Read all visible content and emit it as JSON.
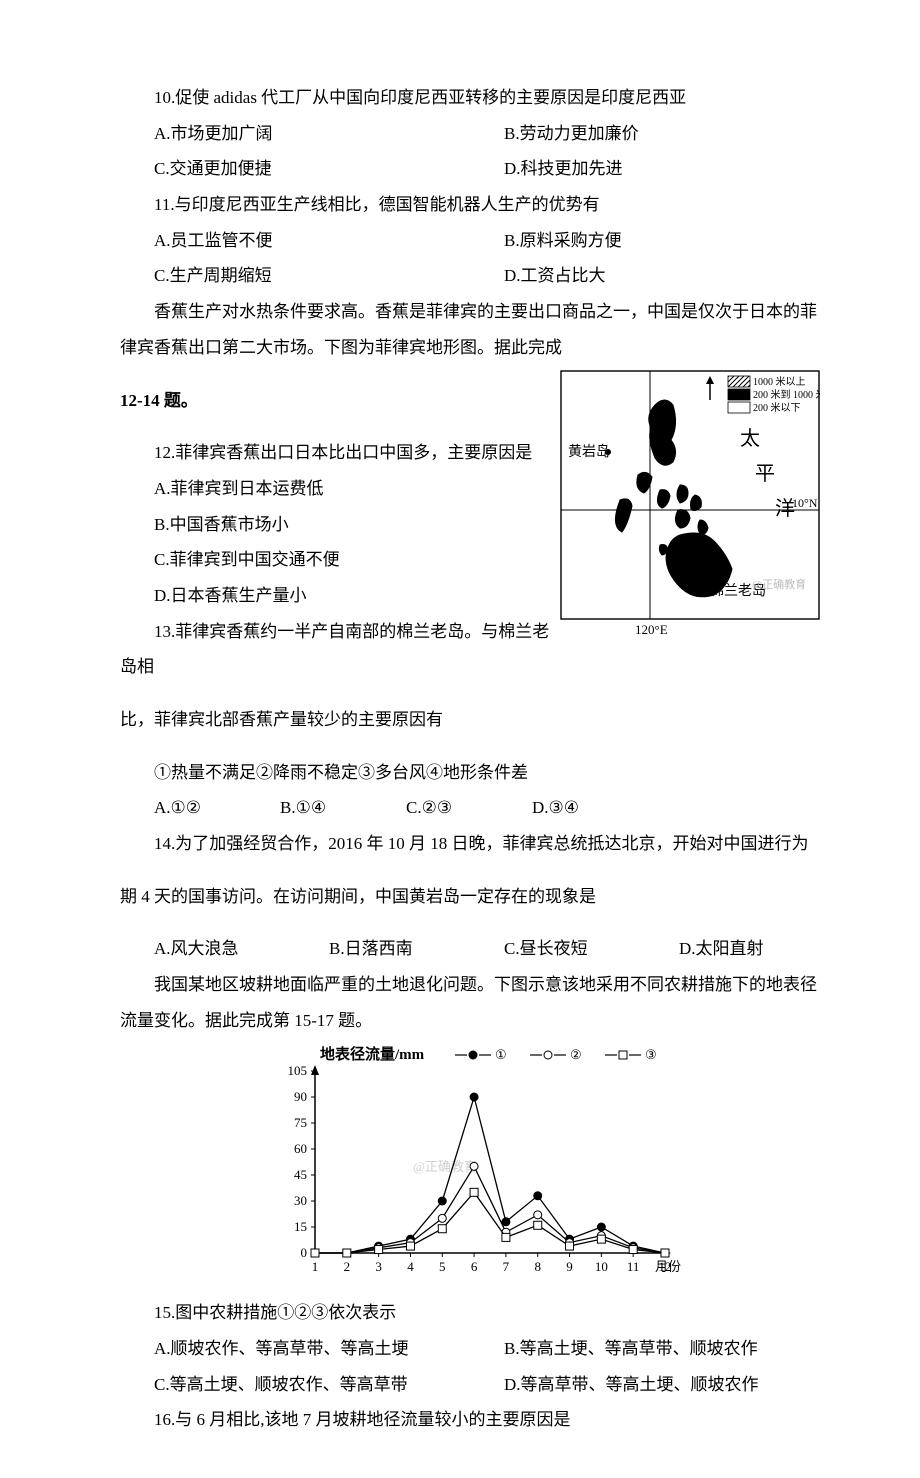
{
  "q10": {
    "stem": "10.促使 adidas 代工厂从中国向印度尼西亚转移的主要原因是印度尼西亚",
    "A": "A.市场更加广阔",
    "B": "B.劳动力更加廉价",
    "C": "C.交通更加便捷",
    "D": "D.科技更加先进"
  },
  "q11": {
    "stem": "11.与印度尼西亚生产线相比，德国智能机器人生产的优势有",
    "A": "A.员工监管不便",
    "B": "B.原料采购方便",
    "C": "C.生产周期缩短",
    "D": "D.工资占比大"
  },
  "ctx12_14": {
    "p1": "香蕉生产对水热条件要求高。香蕉是菲律宾的主要出口商品之一，中国是仅次于日本的菲律宾香蕉出口第二大市场。下图为菲律宾地形图。据此完成",
    "p2": "12-14 题。"
  },
  "map": {
    "legend": {
      "l1": "1000 米以上",
      "l2": "200 米到 1000 米",
      "l3": "200 米以下"
    },
    "labels": {
      "huangyan": "黄岩岛",
      "tai": "太",
      "ping": "平",
      "yang": "洋",
      "minlan": "棉兰老岛",
      "lat": "10°N",
      "lon": "120°E",
      "watermark": "@正确教育"
    },
    "colors": {
      "border": "#000000",
      "land_high": "#333333",
      "land_mid": "#000000",
      "land_low": "#ffffff",
      "hatch": "#000000",
      "text": "#000000",
      "wm": "#bdbdbd"
    }
  },
  "q12": {
    "stem": "12.菲律宾香蕉出口日本比出口中国多，主要原因是",
    "A": "A.菲律宾到日本运费低",
    "B": "B.中国香蕉市场小",
    "C": "C.菲律宾到中国交通不便",
    "D": "D.日本香蕉生产量小"
  },
  "q13": {
    "stem": "13.菲律宾香蕉约一半产自南部的棉兰老岛。与棉兰老岛相",
    "stem2": "比，菲律宾北部香蕉产量较少的主要原因有",
    "choices_line": "①热量不满足②降雨不稳定③多台风④地形条件差",
    "A": "A.①②",
    "B": "B.①④",
    "C": "C.②③",
    "D": "D.③④"
  },
  "q14": {
    "stem": "14.为了加强经贸合作，2016 年 10 月 18 日晚，菲律宾总统抵达北京，开始对中国进行为",
    "stem2": "期 4 天的国事访问。在访问期间，中国黄岩岛一定存在的现象是",
    "A": "A.风大浪急",
    "B": "B.日落西南",
    "C": "C.昼长夜短",
    "D": "D.太阳直射"
  },
  "ctx15_17": {
    "p1": "我国某地区坡耕地面临严重的土地退化问题。下图示意该地采用不同农耕措施下的地表径流量变化。据此完成第 15-17 题。"
  },
  "chart": {
    "title_y": "地表径流量/mm",
    "x_label": "月份",
    "legend": {
      "s1": "①",
      "s2": "②",
      "s3": "③"
    },
    "legend_markers": {
      "s1": "●",
      "s2": "○",
      "s3": "□"
    },
    "x_categories": [
      1,
      2,
      3,
      4,
      5,
      6,
      7,
      8,
      9,
      10,
      11,
      12
    ],
    "y_ticks": [
      0,
      15,
      30,
      45,
      60,
      75,
      90,
      105
    ],
    "ylim": [
      0,
      105
    ],
    "series": {
      "s1": [
        0,
        0,
        4,
        8,
        30,
        90,
        18,
        33,
        8,
        15,
        4,
        0
      ],
      "s2": [
        0,
        0,
        3,
        6,
        20,
        50,
        12,
        22,
        6,
        10,
        3,
        0
      ],
      "s3": [
        0,
        0,
        2,
        4,
        14,
        35,
        9,
        16,
        4,
        8,
        2,
        0
      ]
    },
    "colors": {
      "axis": "#000000",
      "text": "#000000",
      "line": "#000000",
      "marker_fill_s1": "#000000",
      "marker_fill_s2": "#ffffff",
      "marker_fill_s3": "#ffffff",
      "wm": "#d0d0d0"
    },
    "watermark": "@正确教育",
    "line_width": 1.3,
    "marker_size": 4,
    "font_size_axis": 13,
    "font_size_title": 15
  },
  "q15": {
    "stem": "15.图中农耕措施①②③依次表示",
    "A": "A.顺坡农作、等高草带、等高土埂",
    "B": "B.等高土埂、等高草带、顺坡农作",
    "C": "C.等高土埂、顺坡农作、等高草带",
    "D": "D.等高草带、等高土埂、顺坡农作"
  },
  "q16": {
    "stem": "16.与 6 月相比,该地 7 月坡耕地径流量较小的主要原因是"
  }
}
